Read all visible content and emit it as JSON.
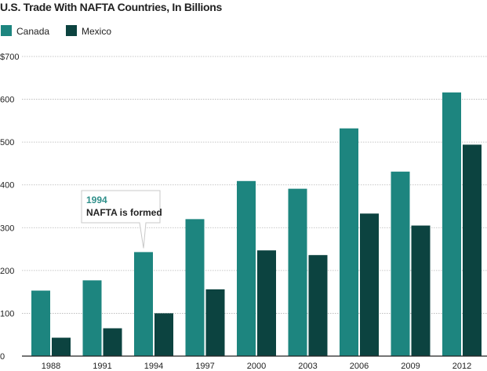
{
  "chart_data": {
    "type": "bar",
    "title": "U.S. Trade With NAFTA Countries, In Billions",
    "categories": [
      "1988",
      "1991",
      "1994",
      "1997",
      "2000",
      "2003",
      "2006",
      "2009",
      "2012"
    ],
    "series": [
      {
        "name": "Canada",
        "color": "#1d857f",
        "values": [
          153,
          177,
          243,
          320,
          409,
          391,
          532,
          431,
          616
        ]
      },
      {
        "name": "Mexico",
        "color": "#0c4340",
        "values": [
          43,
          65,
          100,
          156,
          247,
          236,
          333,
          305,
          494
        ]
      }
    ],
    "ylim": [
      0,
      700
    ],
    "yticks": [
      0,
      100,
      200,
      300,
      400,
      500,
      600,
      700
    ],
    "ytick_labels": [
      "0",
      "100",
      "200",
      "300",
      "400",
      "500",
      "600",
      "$700"
    ],
    "xlabel": "",
    "ylabel": "",
    "grid": true,
    "legend_position": "top-left",
    "annotation": {
      "category": "1994",
      "series": "Canada",
      "year_label": "1994",
      "text": "NAFTA is formed",
      "year_color": "#2f8f8a"
    }
  }
}
